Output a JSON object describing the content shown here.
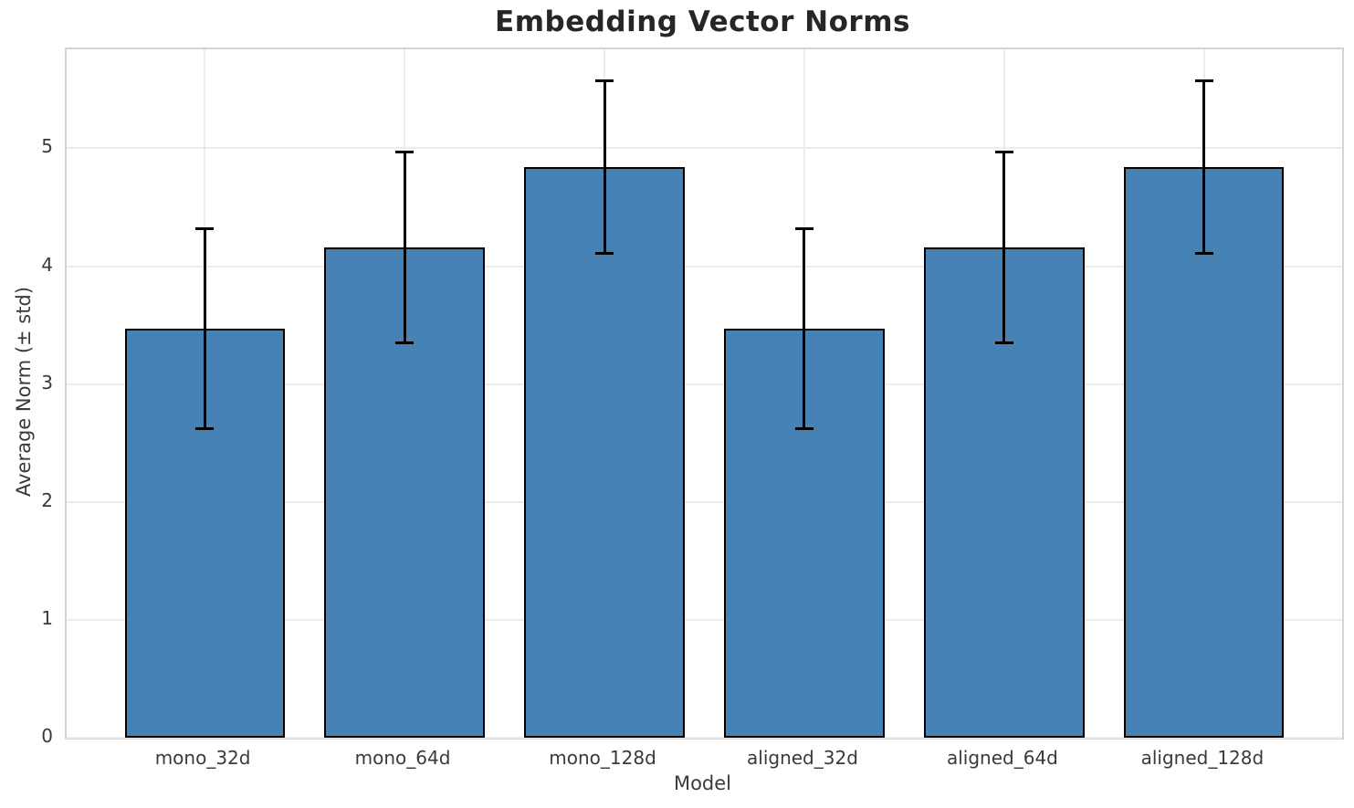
{
  "chart_data": {
    "type": "bar",
    "title": "Embedding Vector Norms",
    "xlabel": "Model",
    "ylabel": "Average Norm (± std)",
    "categories": [
      "mono_32d",
      "mono_64d",
      "mono_128d",
      "aligned_32d",
      "aligned_64d",
      "aligned_128d"
    ],
    "values": [
      3.47,
      4.16,
      4.84,
      3.47,
      4.16,
      4.84
    ],
    "errors": [
      0.85,
      0.81,
      0.73,
      0.85,
      0.81,
      0.73
    ],
    "yticks": [
      0,
      1,
      2,
      3,
      4,
      5
    ],
    "ylim": [
      0,
      5.84
    ],
    "xlim": [
      -0.69,
      5.69
    ],
    "bar_width_units": 0.8,
    "grid": "both",
    "legend": false,
    "error_bars": "vertical, symmetric, with caps",
    "colors": {
      "bar_fill": "#4682B4",
      "bar_edge": "#000000",
      "error": "#000000",
      "grid": "#ececec",
      "spine": "#d4d4d4",
      "tick_text": "#3a3a3a",
      "title_text": "#262626",
      "background": "#ffffff"
    }
  }
}
